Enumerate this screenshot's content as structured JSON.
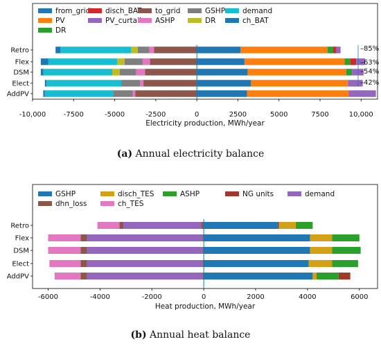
{
  "chart_data": [
    {
      "type": "bar",
      "orientation": "horizontal",
      "stacked": true,
      "categories": [
        "Retro",
        "Flex",
        "DSM",
        "Elect",
        "AddPV"
      ],
      "xlabel": "Electricity production, MWh/year",
      "xlim": [
        -10000,
        11000
      ],
      "xticks": [
        -10000,
        -7500,
        -5000,
        -2500,
        0,
        2500,
        5000,
        7500,
        10000
      ],
      "xtick_labels": [
        "-10,000",
        "-7500",
        "-5000",
        "-2500",
        "0",
        "2500",
        "5000",
        "7500",
        "10,000"
      ],
      "legend_position": "top",
      "colors": {
        "from_grid": "#1f77b4",
        "disch_BAT": "#d62728",
        "to_grid": "#8c564b",
        "GSHP": "#7f7f7f",
        "demand": "#17becf",
        "PV": "#ff7f0e",
        "PV_curtail": "#9467bd",
        "ASHP": "#e377c2",
        "DR": "#bcbd22",
        "DR_pos": "#2ca02c",
        "ch_BAT": "#1f77b4"
      },
      "legend": [
        {
          "label": "from_grid",
          "key": "from_grid"
        },
        {
          "label": "disch_BAT",
          "key": "disch_BAT"
        },
        {
          "label": "to_grid",
          "key": "to_grid"
        },
        {
          "label": "GSHP",
          "key": "GSHP"
        },
        {
          "label": "demand",
          "key": "demand"
        },
        {
          "label": "PV",
          "key": "PV"
        },
        {
          "label": "PV_curtail",
          "key": "PV_curtail"
        },
        {
          "label": "ASHP",
          "key": "ASHP"
        },
        {
          "label": "DR",
          "key": "DR"
        },
        {
          "label": "ch_BAT",
          "key": "ch_BAT"
        },
        {
          "label": "DR",
          "key": "DR_pos"
        }
      ],
      "positive_order": [
        "from_grid",
        "PV",
        "DR_pos",
        "disch_BAT",
        "PV_curtail"
      ],
      "negative_order": [
        "to_grid",
        "ASHP",
        "GSHP",
        "DR",
        "demand",
        "ch_BAT"
      ],
      "series": [
        {
          "key": "from_grid",
          "values": [
            2650,
            2900,
            3100,
            3300,
            3050
          ]
        },
        {
          "key": "PV",
          "values": [
            5300,
            6100,
            6000,
            5900,
            6200
          ]
        },
        {
          "key": "DR_pos",
          "values": [
            350,
            350,
            350,
            0,
            0
          ]
        },
        {
          "key": "disch_BAT",
          "values": [
            200,
            350,
            0,
            0,
            0
          ]
        },
        {
          "key": "PV_curtail",
          "values": [
            250,
            550,
            700,
            900,
            1650
          ]
        },
        {
          "key": "to_grid",
          "values": [
            -2600,
            -2850,
            -3150,
            -3250,
            -3750
          ]
        },
        {
          "key": "ASHP",
          "values": [
            -300,
            -450,
            -550,
            -200,
            -150
          ]
        },
        {
          "key": "GSHP",
          "values": [
            -700,
            -1100,
            -1000,
            -1150,
            -1200
          ]
        },
        {
          "key": "DR",
          "values": [
            -400,
            -450,
            -450,
            0,
            0
          ]
        },
        {
          "key": "demand",
          "values": [
            -4300,
            -4200,
            -4200,
            -4550,
            -4150
          ]
        },
        {
          "key": "ch_BAT",
          "values": [
            -300,
            -450,
            -150,
            -100,
            -100
          ]
        }
      ],
      "annotations": [
        "85%",
        "63%",
        "54%",
        "42%"
      ],
      "caption": {
        "label": "(a)",
        "text": " Annual electricity balance"
      }
    },
    {
      "type": "bar",
      "orientation": "horizontal",
      "stacked": true,
      "categories": [
        "Retro",
        "Flex",
        "DSM",
        "Elect",
        "AddPV"
      ],
      "xlabel": "Heat production, MWh/year",
      "xlim": [
        -6600,
        6700
      ],
      "xticks": [
        -6000,
        -4000,
        -2000,
        0,
        2000,
        4000,
        6000
      ],
      "xtick_labels": [
        "-6000",
        "-4000",
        "-2000",
        "0",
        "2000",
        "4000",
        "6000"
      ],
      "legend_position": "top",
      "colors": {
        "GSHP": "#1f77b4",
        "disch_TES": "#d4a017",
        "ASHP": "#2ca02c",
        "NG": "#a0392b",
        "demand": "#9467bd",
        "dhn_loss": "#8c564b",
        "ch_TES": "#e377c2"
      },
      "legend": [
        {
          "label": "GSHP",
          "key": "GSHP"
        },
        {
          "label": "disch_TES",
          "key": "disch_TES"
        },
        {
          "label": "ASHP",
          "key": "ASHP"
        },
        {
          "label": "NG units",
          "key": "NG"
        },
        {
          "label": "demand",
          "key": "demand"
        },
        {
          "label": "dhn_loss",
          "key": "dhn_loss"
        },
        {
          "label": "ch_TES",
          "key": "ch_TES"
        }
      ],
      "positive_order": [
        "GSHP",
        "NG",
        "disch_TES",
        "ASHP",
        "NG"
      ],
      "negative_order": [
        "dhn_loss",
        "demand",
        "dhn_loss",
        "ch_TES"
      ],
      "series": [
        {
          "key": "GSHP",
          "values": [
            2850,
            4100,
            4100,
            4050,
            4200
          ]
        },
        {
          "key": "NG",
          "values": [
            50,
            0,
            0,
            0,
            0
          ]
        },
        {
          "key": "disch_TES",
          "values": [
            650,
            850,
            850,
            900,
            150
          ]
        },
        {
          "key": "ASHP",
          "values": [
            650,
            1050,
            1100,
            1000,
            850
          ]
        },
        {
          "key": "NG",
          "values": [
            0,
            0,
            0,
            0,
            450
          ]
        },
        {
          "key": "dhn_loss",
          "values": [
            -100,
            -50,
            -50,
            -50,
            -50
          ]
        },
        {
          "key": "demand",
          "values": [
            -3000,
            -4450,
            -4450,
            -4450,
            -4450
          ]
        },
        {
          "key": "dhn_loss",
          "values": [
            -150,
            -250,
            -250,
            -250,
            -250
          ]
        },
        {
          "key": "ch_TES",
          "values": [
            -850,
            -1250,
            -1250,
            -1200,
            -1000
          ]
        }
      ],
      "caption": {
        "label": "(b)",
        "text": " Annual heat balance"
      }
    }
  ]
}
